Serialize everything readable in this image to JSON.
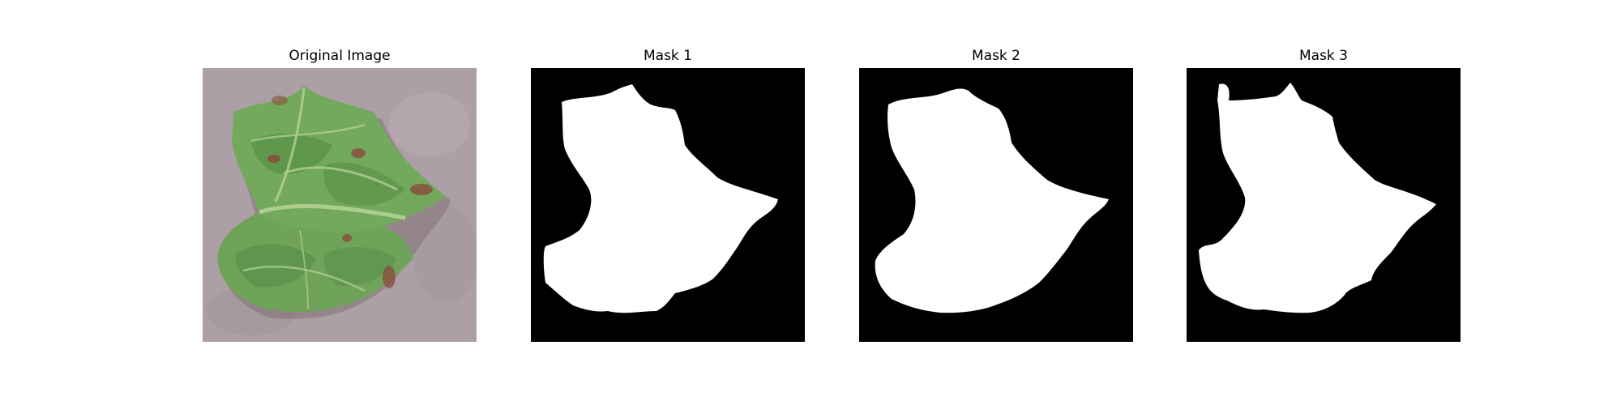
{
  "figure": {
    "panels": [
      {
        "title": "Original Image"
      },
      {
        "title": "Mask 1"
      },
      {
        "title": "Mask 2"
      },
      {
        "title": "Mask 3"
      }
    ]
  },
  "colors": {
    "background": "#ffffff",
    "mask_background": "#000000",
    "mask_foreground": "#ffffff",
    "leaf_green": "#6fa35a",
    "leaf_dark": "#4f8a40",
    "leaf_highlight": "#b7d398",
    "ground": "#a99ca2",
    "brown_spot": "#8a4a3c"
  }
}
